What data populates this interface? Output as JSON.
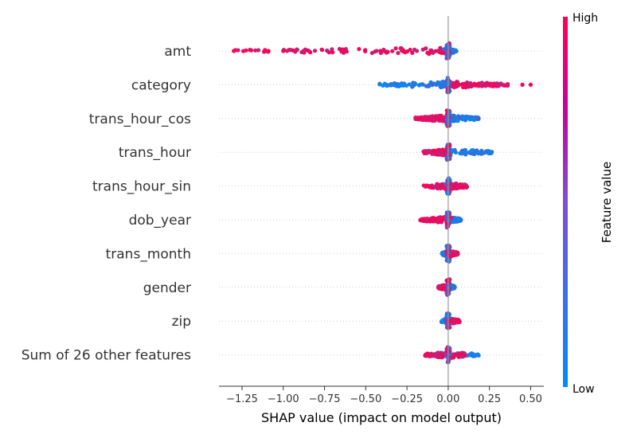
{
  "chart_data": {
    "type": "scatter",
    "subtype": "shap-beeswarm",
    "title": "",
    "xlabel": "SHAP value (impact on model output)",
    "ylabel": "",
    "xlim": [
      -1.39,
      0.58
    ],
    "xticks": [
      -1.25,
      -1.0,
      -0.75,
      -0.5,
      -0.25,
      0.0,
      0.25,
      0.5
    ],
    "xtick_labels": [
      "−1.25",
      "−1.00",
      "−0.75",
      "−0.50",
      "−0.25",
      "0.00",
      "0.25",
      "0.50"
    ],
    "grid": false,
    "colors": {
      "high": "#ff0052",
      "low": "#008bfb",
      "mid": "#7d4fd6",
      "zero_line": "#999999",
      "row_line": "#cccccc"
    },
    "colorbar": {
      "label": "Feature value",
      "high_label": "High",
      "low_label": "Low"
    },
    "features": [
      {
        "name": "amt",
        "min": -1.3,
        "max": 0.05,
        "high_min": -1.3,
        "high_max": -0.02,
        "low_min": -0.05,
        "low_max": 0.05,
        "outliers": [
          -1.3,
          -1.09,
          -1.0
        ]
      },
      {
        "name": "category",
        "min": -0.42,
        "max": 0.5,
        "high_min": 0.0,
        "high_max": 0.37,
        "low_min": -0.42,
        "low_max": 0.0,
        "outliers": [
          0.45,
          0.5
        ]
      },
      {
        "name": "trans_hour_cos",
        "min": -0.2,
        "max": 0.19,
        "high_min": -0.2,
        "high_max": 0.0,
        "low_min": 0.0,
        "low_max": 0.19,
        "outliers": []
      },
      {
        "name": "trans_hour",
        "min": -0.15,
        "max": 0.28,
        "high_min": -0.15,
        "high_max": 0.0,
        "low_min": 0.0,
        "low_max": 0.28,
        "outliers": []
      },
      {
        "name": "trans_hour_sin",
        "min": -0.15,
        "max": 0.12,
        "high_min": -0.15,
        "high_max": 0.12,
        "low_min": -0.08,
        "low_max": 0.05,
        "outliers": []
      },
      {
        "name": "dob_year",
        "min": -0.17,
        "max": 0.08,
        "high_min": -0.17,
        "high_max": 0.02,
        "low_min": 0.0,
        "low_max": 0.08,
        "outliers": []
      },
      {
        "name": "trans_month",
        "min": -0.04,
        "max": 0.06,
        "high_min": -0.01,
        "high_max": 0.06,
        "low_min": -0.04,
        "low_max": 0.02,
        "outliers": []
      },
      {
        "name": "gender",
        "min": -0.06,
        "max": 0.04,
        "high_min": -0.06,
        "high_max": 0.0,
        "low_min": 0.0,
        "low_max": 0.04,
        "outliers": []
      },
      {
        "name": "zip",
        "min": -0.04,
        "max": 0.07,
        "high_min": -0.01,
        "high_max": 0.07,
        "low_min": -0.04,
        "low_max": 0.02,
        "outliers": []
      },
      {
        "name": "Sum of 26 other features",
        "min": -0.14,
        "max": 0.19,
        "high_min": -0.14,
        "high_max": 0.1,
        "low_min": -0.08,
        "low_max": 0.19,
        "outliers": []
      }
    ]
  }
}
